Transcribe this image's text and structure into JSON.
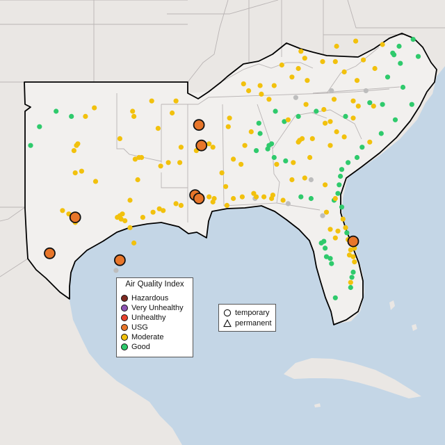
{
  "legend": {
    "title": "Air Quality Index",
    "items": [
      {
        "label": "Hazardous",
        "color": "#7e2a22"
      },
      {
        "label": "Very Unhealthy",
        "color": "#8e55b3"
      },
      {
        "label": "Unhealthy",
        "color": "#e8432d"
      },
      {
        "label": "USG",
        "color": "#e8762a"
      },
      {
        "label": "Moderate",
        "color": "#f2c10d"
      },
      {
        "label": "Good",
        "color": "#2fca6c"
      }
    ]
  },
  "shape_legend": {
    "items": [
      {
        "label": "temporary",
        "shape": "circle"
      },
      {
        "label": "permanent",
        "shape": "triangle"
      }
    ]
  },
  "colors": {
    "water": "#c4d6e6",
    "land": "#eae7e4",
    "region_fill": "#f2f0ee",
    "state_border": "#b9b4b4",
    "region_outline": "#000000",
    "no_data": "#bdbdbd"
  },
  "monitors": [
    {
      "lon": -105.5,
      "lat": 33.5,
      "aqi": "Good"
    },
    {
      "lon": -104.8,
      "lat": 34.6,
      "aqi": "Good"
    },
    {
      "lon": -103.5,
      "lat": 35.5,
      "aqi": "Good"
    },
    {
      "lon": -102.3,
      "lat": 35.2,
      "aqi": "Good"
    },
    {
      "lon": -101.2,
      "lat": 35.2,
      "aqi": "Moderate"
    },
    {
      "lon": -100.5,
      "lat": 35.7,
      "aqi": "Moderate"
    },
    {
      "lon": -97.5,
      "lat": 35.5,
      "aqi": "Moderate"
    },
    {
      "lon": -96.0,
      "lat": 36.1,
      "aqi": "Moderate"
    },
    {
      "lon": -97.4,
      "lat": 35.2,
      "aqi": "Moderate"
    },
    {
      "lon": -95.5,
      "lat": 34.5,
      "aqi": "Moderate"
    },
    {
      "lon": -101.8,
      "lat": 33.6,
      "aqi": "Moderate"
    },
    {
      "lon": -101.9,
      "lat": 33.5,
      "aqi": "Moderate"
    },
    {
      "lon": -102.1,
      "lat": 33.2,
      "aqi": "Moderate"
    },
    {
      "lon": -98.5,
      "lat": 33.9,
      "aqi": "Moderate"
    },
    {
      "lon": -97.0,
      "lat": 32.8,
      "aqi": "Moderate"
    },
    {
      "lon": -97.3,
      "lat": 32.7,
      "aqi": "Moderate"
    },
    {
      "lon": -96.8,
      "lat": 32.8,
      "aqi": "Moderate"
    },
    {
      "lon": -95.3,
      "lat": 32.3,
      "aqi": "Moderate"
    },
    {
      "lon": -94.7,
      "lat": 32.5,
      "aqi": "Moderate"
    },
    {
      "lon": -101.5,
      "lat": 32.0,
      "aqi": "Moderate"
    },
    {
      "lon": -102.0,
      "lat": 31.9,
      "aqi": "Moderate"
    },
    {
      "lon": -100.4,
      "lat": 31.4,
      "aqi": "Moderate"
    },
    {
      "lon": -97.1,
      "lat": 31.5,
      "aqi": "Moderate"
    },
    {
      "lon": -97.7,
      "lat": 30.3,
      "aqi": "Moderate"
    },
    {
      "lon": -98.5,
      "lat": 29.4,
      "aqi": "Moderate"
    },
    {
      "lon": -98.3,
      "lat": 29.5,
      "aqi": "Moderate"
    },
    {
      "lon": -98.7,
      "lat": 29.3,
      "aqi": "Moderate"
    },
    {
      "lon": -98.4,
      "lat": 29.2,
      "aqi": "Moderate"
    },
    {
      "lon": -98.1,
      "lat": 29.1,
      "aqi": "Moderate"
    },
    {
      "lon": -97.7,
      "lat": 28.7,
      "aqi": "Moderate"
    },
    {
      "lon": -96.7,
      "lat": 29.3,
      "aqi": "Moderate"
    },
    {
      "lon": -95.9,
      "lat": 29.6,
      "aqi": "Moderate"
    },
    {
      "lon": -95.4,
      "lat": 29.8,
      "aqi": "Moderate"
    },
    {
      "lon": -95.1,
      "lat": 29.7,
      "aqi": "Moderate"
    },
    {
      "lon": -94.1,
      "lat": 30.1,
      "aqi": "Moderate"
    },
    {
      "lon": -93.7,
      "lat": 30.0,
      "aqi": "Moderate"
    },
    {
      "lon": -102.5,
      "lat": 29.5,
      "aqi": "Moderate"
    },
    {
      "lon": -103.0,
      "lat": 29.7,
      "aqi": "Moderate"
    },
    {
      "lon": -97.4,
      "lat": 27.8,
      "aqi": "Moderate"
    },
    {
      "lon": -102.0,
      "lat": 29.3,
      "aqi": "USG"
    },
    {
      "lon": -102.0,
      "lat": 29.0,
      "aqi": "Moderate"
    },
    {
      "lon": -104.0,
      "lat": 27.2,
      "aqi": "USG"
    },
    {
      "lon": -98.5,
      "lat": 26.8,
      "aqi": "USG"
    },
    {
      "lon": -92.5,
      "lat": 33.2,
      "aqi": "Moderate"
    },
    {
      "lon": -91.5,
      "lat": 33.6,
      "aqi": "Moderate"
    },
    {
      "lon": -90.5,
      "lat": 31.9,
      "aqi": "Moderate"
    },
    {
      "lon": -91.1,
      "lat": 30.4,
      "aqi": "Moderate"
    },
    {
      "lon": -91.2,
      "lat": 30.2,
      "aqi": "Moderate"
    },
    {
      "lon": -90.1,
      "lat": 30.0,
      "aqi": "Moderate"
    },
    {
      "lon": -88.0,
      "lat": 30.7,
      "aqi": "Moderate"
    },
    {
      "lon": -90.2,
      "lat": 31.1,
      "aqi": "Moderate"
    },
    {
      "lon": -91.5,
      "lat": 30.5,
      "aqi": "Moderate"
    },
    {
      "lon": -89.6,
      "lat": 32.7,
      "aqi": "Moderate"
    },
    {
      "lon": -90.0,
      "lat": 34.6,
      "aqi": "Moderate"
    },
    {
      "lon": -89.0,
      "lat": 32.4,
      "aqi": "Moderate"
    },
    {
      "lon": -89.6,
      "lat": 30.4,
      "aqi": "Moderate"
    },
    {
      "lon": -88.9,
      "lat": 30.5,
      "aqi": "Moderate"
    },
    {
      "lon": -87.2,
      "lat": 30.5,
      "aqi": "Moderate"
    },
    {
      "lon": -86.6,
      "lat": 30.4,
      "aqi": "Moderate"
    },
    {
      "lon": -85.7,
      "lat": 30.3,
      "aqi": "Moderate"
    },
    {
      "lon": -87.8,
      "lat": 30.5,
      "aqi": "Moderate"
    },
    {
      "lon": -86.5,
      "lat": 30.6,
      "aqi": "Moderate"
    },
    {
      "lon": -84.3,
      "lat": 30.5,
      "aqi": "Good"
    },
    {
      "lon": -83.5,
      "lat": 30.4,
      "aqi": "Good"
    },
    {
      "lon": -86.8,
      "lat": 33.5,
      "aqi": "Good"
    },
    {
      "lon": -86.6,
      "lat": 33.6,
      "aqi": "Good"
    },
    {
      "lon": -86.9,
      "lat": 33.3,
      "aqi": "Good"
    },
    {
      "lon": -86.2,
      "lat": 32.4,
      "aqi": "Moderate"
    },
    {
      "lon": -85.5,
      "lat": 32.6,
      "aqi": "Good"
    },
    {
      "lon": -87.6,
      "lat": 34.8,
      "aqi": "Good"
    },
    {
      "lon": -84.4,
      "lat": 33.8,
      "aqi": "Moderate"
    },
    {
      "lon": -84.2,
      "lat": 33.9,
      "aqi": "Moderate"
    },
    {
      "lon": -84.5,
      "lat": 33.7,
      "aqi": "Moderate"
    },
    {
      "lon": -83.4,
      "lat": 33.9,
      "aqi": "Moderate"
    },
    {
      "lon": -82.0,
      "lat": 33.5,
      "aqi": "Moderate"
    },
    {
      "lon": -81.1,
      "lat": 32.1,
      "aqi": "Good"
    },
    {
      "lon": -81.3,
      "lat": 31.2,
      "aqi": "Good"
    },
    {
      "lon": -83.6,
      "lat": 32.8,
      "aqi": "Moderate"
    },
    {
      "lon": -82.4,
      "lat": 31.2,
      "aqi": "Moderate"
    },
    {
      "lon": -85.0,
      "lat": 31.5,
      "aqi": "Moderate"
    },
    {
      "lon": -84.0,
      "lat": 31.6,
      "aqi": "Moderate"
    },
    {
      "lon": -84.9,
      "lat": 32.5,
      "aqi": "Moderate"
    },
    {
      "lon": -81.7,
      "lat": 30.3,
      "aqi": "Good"
    },
    {
      "lon": -81.6,
      "lat": 30.4,
      "aqi": "Moderate"
    },
    {
      "lon": -81.0,
      "lat": 29.2,
      "aqi": "Moderate"
    },
    {
      "lon": -82.3,
      "lat": 29.6,
      "aqi": "Moderate"
    },
    {
      "lon": -81.4,
      "lat": 28.5,
      "aqi": "Moderate"
    },
    {
      "lon": -80.6,
      "lat": 28.0,
      "aqi": "Moderate"
    },
    {
      "lon": -80.4,
      "lat": 27.4,
      "aqi": "Moderate"
    },
    {
      "lon": -82.5,
      "lat": 27.9,
      "aqi": "Good"
    },
    {
      "lon": -82.7,
      "lat": 27.8,
      "aqi": "Good"
    },
    {
      "lon": -82.4,
      "lat": 27.5,
      "aqi": "Good"
    },
    {
      "lon": -81.9,
      "lat": 26.6,
      "aqi": "Good"
    },
    {
      "lon": -80.2,
      "lat": 26.1,
      "aqi": "Good"
    },
    {
      "lon": -80.3,
      "lat": 25.8,
      "aqi": "Good"
    },
    {
      "lon": -80.1,
      "lat": 26.7,
      "aqi": "Moderate"
    },
    {
      "lon": -80.4,
      "lat": 25.5,
      "aqi": "Moderate"
    },
    {
      "lon": -80.1,
      "lat": 27.5,
      "aqi": "Moderate"
    },
    {
      "lon": -81.6,
      "lat": 28.1,
      "aqi": "Moderate"
    },
    {
      "lon": -82.0,
      "lat": 28.6,
      "aqi": "Moderate"
    },
    {
      "lon": -80.8,
      "lat": 28.7,
      "aqi": "Moderate"
    },
    {
      "lon": -80.5,
      "lat": 27.1,
      "aqi": "Moderate"
    },
    {
      "lon": -80.2,
      "lat": 27.9,
      "aqi": "USG"
    },
    {
      "lon": -80.2,
      "lat": 27.0,
      "aqi": "Moderate"
    },
    {
      "lon": -79.9,
      "lat": 32.8,
      "aqi": "Good"
    },
    {
      "lon": -79.5,
      "lat": 33.4,
      "aqi": "Good"
    },
    {
      "lon": -80.9,
      "lat": 34.0,
      "aqi": "Moderate"
    },
    {
      "lon": -81.5,
      "lat": 34.3,
      "aqi": "Moderate"
    },
    {
      "lon": -82.4,
      "lat": 34.8,
      "aqi": "Moderate"
    },
    {
      "lon": -82.0,
      "lat": 34.9,
      "aqi": "Moderate"
    },
    {
      "lon": -80.8,
      "lat": 35.2,
      "aqi": "Good"
    },
    {
      "lon": -80.2,
      "lat": 35.1,
      "aqi": "Moderate"
    },
    {
      "lon": -79.8,
      "lat": 35.8,
      "aqi": "Moderate"
    },
    {
      "lon": -78.6,
      "lat": 35.8,
      "aqi": "Moderate"
    },
    {
      "lon": -77.9,
      "lat": 35.9,
      "aqi": "Good"
    },
    {
      "lon": -76.9,
      "lat": 35.0,
      "aqi": "Good"
    },
    {
      "lon": -78.9,
      "lat": 36.0,
      "aqi": "Good"
    },
    {
      "lon": -80.2,
      "lat": 36.1,
      "aqi": "Moderate"
    },
    {
      "lon": -81.7,
      "lat": 36.2,
      "aqi": "Moderate"
    },
    {
      "lon": -82.5,
      "lat": 35.6,
      "aqi": "Moderate"
    },
    {
      "lon": -83.1,
      "lat": 35.5,
      "aqi": "Good"
    },
    {
      "lon": -83.9,
      "lat": 35.9,
      "aqi": "Moderate"
    },
    {
      "lon": -85.3,
      "lat": 35.0,
      "aqi": "Moderate"
    },
    {
      "lon": -86.8,
      "lat": 36.2,
      "aqi": "Moderate"
    },
    {
      "lon": -87.4,
      "lat": 36.5,
      "aqi": "Moderate"
    },
    {
      "lon": -86.3,
      "lat": 35.5,
      "aqi": "Good"
    },
    {
      "lon": -84.5,
      "lat": 35.2,
      "aqi": "Good"
    },
    {
      "lon": -89.9,
      "lat": 35.1,
      "aqi": "Moderate"
    },
    {
      "lon": -88.4,
      "lat": 36.7,
      "aqi": "Moderate"
    },
    {
      "lon": -85.8,
      "lat": 38.2,
      "aqi": "Moderate"
    },
    {
      "lon": -84.5,
      "lat": 38.0,
      "aqi": "Moderate"
    },
    {
      "lon": -84.3,
      "lat": 39.0,
      "aqi": "Moderate"
    },
    {
      "lon": -82.6,
      "lat": 38.4,
      "aqi": "Moderate"
    },
    {
      "lon": -83.8,
      "lat": 37.3,
      "aqi": "Moderate"
    },
    {
      "lon": -85.0,
      "lat": 37.5,
      "aqi": "Moderate"
    },
    {
      "lon": -87.5,
      "lat": 37.0,
      "aqi": "Moderate"
    },
    {
      "lon": -88.8,
      "lat": 37.1,
      "aqi": "Moderate"
    },
    {
      "lon": -86.4,
      "lat": 37.0,
      "aqi": "Moderate"
    },
    {
      "lon": -81.6,
      "lat": 38.4,
      "aqi": "Moderate"
    },
    {
      "lon": -80.9,
      "lat": 37.8,
      "aqi": "Moderate"
    },
    {
      "lon": -80.0,
      "lat": 39.6,
      "aqi": "Moderate"
    },
    {
      "lon": -81.5,
      "lat": 39.3,
      "aqi": "Moderate"
    },
    {
      "lon": -77.9,
      "lat": 39.4,
      "aqi": "Moderate"
    },
    {
      "lon": -79.4,
      "lat": 38.5,
      "aqi": "Moderate"
    },
    {
      "lon": -77.5,
      "lat": 37.5,
      "aqi": "Good"
    },
    {
      "lon": -76.3,
      "lat": 36.9,
      "aqi": "Good"
    },
    {
      "lon": -78.5,
      "lat": 38.0,
      "aqi": "Moderate"
    },
    {
      "lon": -77.1,
      "lat": 38.9,
      "aqi": "Good"
    },
    {
      "lon": -77.0,
      "lat": 38.8,
      "aqi": "Good"
    },
    {
      "lon": -76.6,
      "lat": 39.3,
      "aqi": "Good"
    },
    {
      "lon": -76.5,
      "lat": 38.3,
      "aqi": "Good"
    },
    {
      "lon": -79.9,
      "lat": 37.3,
      "aqi": "Moderate"
    },
    {
      "lon": -75.5,
      "lat": 39.7,
      "aqi": "Good"
    },
    {
      "lon": -75.1,
      "lat": 38.7,
      "aqi": "Good"
    },
    {
      "lon": -78.9,
      "lat": 33.7,
      "aqi": "Moderate"
    },
    {
      "lon": -75.6,
      "lat": 35.9,
      "aqi": "Good"
    },
    {
      "lon": -84.0,
      "lat": 38.6,
      "aqi": "Moderate"
    },
    {
      "lon": -88.2,
      "lat": 34.3,
      "aqi": "Moderate"
    },
    {
      "lon": -88.7,
      "lat": 33.5,
      "aqi": "Moderate"
    },
    {
      "lon": -91.2,
      "lat": 33.4,
      "aqi": "Moderate"
    },
    {
      "lon": -93.8,
      "lat": 32.5,
      "aqi": "Moderate"
    },
    {
      "lon": -93.7,
      "lat": 33.4,
      "aqi": "Moderate"
    },
    {
      "lon": -94.4,
      "lat": 35.4,
      "aqi": "Moderate"
    },
    {
      "lon": -94.1,
      "lat": 36.1,
      "aqi": "Moderate"
    },
    {
      "lon": -92.3,
      "lat": 34.7,
      "aqi": "USG"
    },
    {
      "lon": -92.1,
      "lat": 33.5,
      "aqi": "USG"
    },
    {
      "lon": -92.6,
      "lat": 30.6,
      "aqi": "USG"
    },
    {
      "lon": -92.3,
      "lat": 30.4,
      "aqi": "USG"
    },
    {
      "lon": -87.8,
      "lat": 33.2,
      "aqi": "Good"
    },
    {
      "lon": -87.5,
      "lat": 34.2,
      "aqi": "Good"
    },
    {
      "lon": -86.4,
      "lat": 32.8,
      "aqi": "Good"
    },
    {
      "lon": -85.6,
      "lat": 34.9,
      "aqi": "Good"
    },
    {
      "lon": -82.3,
      "lat": 27.0,
      "aqi": "Good"
    },
    {
      "lon": -82.0,
      "lat": 26.9,
      "aqi": "Good"
    },
    {
      "lon": -81.6,
      "lat": 24.6,
      "aqi": "Good"
    },
    {
      "lon": -80.4,
      "lat": 25.2,
      "aqi": "Good"
    },
    {
      "lon": -80.7,
      "lat": 28.4,
      "aqi": "Good"
    },
    {
      "lon": -81.1,
      "lat": 29.9,
      "aqi": "Good"
    },
    {
      "lon": -81.4,
      "lat": 30.7,
      "aqi": "Good"
    },
    {
      "lon": -81.2,
      "lat": 31.7,
      "aqi": "Good"
    },
    {
      "lon": -80.6,
      "lat": 32.5,
      "aqi": "Good"
    },
    {
      "lon": -78.0,
      "lat": 34.2,
      "aqi": "Good"
    },
    {
      "lon": -85.3,
      "lat": 30.1,
      "aqi": "No data"
    },
    {
      "lon": -82.6,
      "lat": 29.4,
      "aqi": "No data"
    },
    {
      "lon": -87.9,
      "lat": 30.4,
      "aqi": "No data"
    },
    {
      "lon": -84.7,
      "lat": 36.3,
      "aqi": "No data"
    },
    {
      "lon": -79.2,
      "lat": 36.7,
      "aqi": "No data"
    },
    {
      "lon": -81.9,
      "lat": 36.7,
      "aqi": "No data"
    },
    {
      "lon": -98.8,
      "lat": 26.2,
      "aqi": "No data"
    },
    {
      "lon": -83.5,
      "lat": 31.5,
      "aqi": "No data"
    }
  ]
}
